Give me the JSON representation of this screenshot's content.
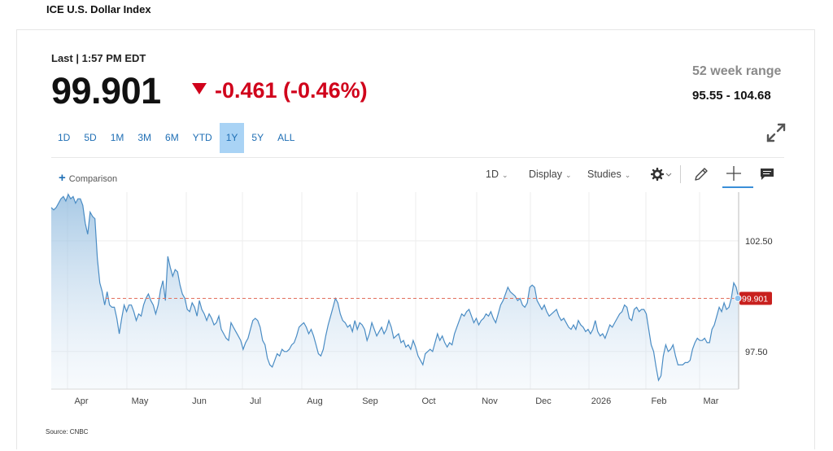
{
  "header": {
    "title": "ICE U.S. Dollar Index",
    "last_label": "Last | 1:57 PM EDT",
    "price": "99.901",
    "change": "-0.461 (-0.46%)",
    "range_label": "52 week range",
    "range_value": "95.55 - 104.68"
  },
  "periods": [
    {
      "label": "1D"
    },
    {
      "label": "5D"
    },
    {
      "label": "1M"
    },
    {
      "label": "3M"
    },
    {
      "label": "6M"
    },
    {
      "label": "YTD"
    },
    {
      "label": "1Y",
      "active": true
    },
    {
      "label": "5Y"
    },
    {
      "label": "ALL"
    }
  ],
  "toolbar": {
    "comparison_label": "Comparison",
    "interval_label": "1D",
    "display_label": "Display",
    "studies_label": "Studies"
  },
  "source": "Source: CNBC",
  "colors": {
    "line": "#4a8cc4",
    "down": "#d0021b",
    "price_tag": "#c8201e",
    "accent": "#a9d3f5"
  },
  "chart_data": {
    "type": "area",
    "title": "",
    "xlabel": "",
    "ylabel": "",
    "x_ticks": [
      "Apr",
      "May",
      "Jun",
      "Jul",
      "Aug",
      "Sep",
      "Oct",
      "Nov",
      "Dec",
      "2026",
      "Feb",
      "Mar"
    ],
    "y_ticks": [
      102.5,
      97.5
    ],
    "ylim": [
      95.8,
      104.7
    ],
    "current_value": 99.901,
    "current_label": "99.901",
    "grid": true,
    "series": [
      {
        "values": [
          104.0,
          103.9,
          104.0,
          104.2,
          104.4,
          104.5,
          104.3,
          104.6,
          104.4,
          104.5,
          104.2,
          104.4,
          104.4,
          104.1,
          103.3,
          102.8,
          103.8,
          103.6,
          103.5,
          101.7,
          100.6,
          100.2,
          99.6,
          100.2,
          99.6,
          99.5,
          99.5,
          99.0,
          98.3,
          99.0,
          99.6,
          99.3,
          99.6,
          99.6,
          99.3,
          98.9,
          99.2,
          99.1,
          99.6,
          99.9,
          100.1,
          99.8,
          99.6,
          99.2,
          99.6,
          100.3,
          100.7,
          99.8,
          101.8,
          101.3,
          100.9,
          101.2,
          101.1,
          100.5,
          100.1,
          99.9,
          99.4,
          99.3,
          99.7,
          99.5,
          99.1,
          99.8,
          99.4,
          99.2,
          98.9,
          99.2,
          99.0,
          98.7,
          98.8,
          99.1,
          98.5,
          98.3,
          98.1,
          98.0,
          98.8,
          98.6,
          98.4,
          98.2,
          98.0,
          97.6,
          97.9,
          98.1,
          98.5,
          98.9,
          99.0,
          98.9,
          98.6,
          98.0,
          97.8,
          97.2,
          96.9,
          96.8,
          97.1,
          97.4,
          97.3,
          97.6,
          97.5,
          97.5,
          97.6,
          97.8,
          97.9,
          98.2,
          98.6,
          98.7,
          98.8,
          98.6,
          98.3,
          98.5,
          98.2,
          97.8,
          97.4,
          97.3,
          97.6,
          98.2,
          98.7,
          99.1,
          99.5,
          99.9,
          99.7,
          99.2,
          98.9,
          98.8,
          98.6,
          98.7,
          98.4,
          98.9,
          98.5,
          98.8,
          98.7,
          98.5,
          98.0,
          98.3,
          98.8,
          98.5,
          98.2,
          98.4,
          98.6,
          98.3,
          98.5,
          98.9,
          98.6,
          98.1,
          98.2,
          98.3,
          97.9,
          98.0,
          97.7,
          97.8,
          97.6,
          98.0,
          97.7,
          97.3,
          97.1,
          96.9,
          97.4,
          97.5,
          97.6,
          97.5,
          97.9,
          98.3,
          98.0,
          98.2,
          97.9,
          97.7,
          97.9,
          97.8,
          98.3,
          98.6,
          98.9,
          99.2,
          99.1,
          99.3,
          99.4,
          99.1,
          98.8,
          99.0,
          98.7,
          98.9,
          99.0,
          99.2,
          99.1,
          99.3,
          99.0,
          98.8,
          99.2,
          99.6,
          99.8,
          100.1,
          100.4,
          100.2,
          100.1,
          100.0,
          99.8,
          99.9,
          99.6,
          99.5,
          99.7,
          100.4,
          100.5,
          100.4,
          99.8,
          99.6,
          99.4,
          99.6,
          99.3,
          99.1,
          99.2,
          99.3,
          99.4,
          99.1,
          98.9,
          99.0,
          98.8,
          98.6,
          98.5,
          98.7,
          98.5,
          98.9,
          98.7,
          98.6,
          98.4,
          98.5,
          98.3,
          98.5,
          98.9,
          98.4,
          98.2,
          98.3,
          98.1,
          98.4,
          98.7,
          98.6,
          98.8,
          99.0,
          99.2,
          99.3,
          99.6,
          99.5,
          99.0,
          98.9,
          99.4,
          99.5,
          99.3,
          99.4,
          99.4,
          99.2,
          98.5,
          97.8,
          97.5,
          96.8,
          96.2,
          96.4,
          97.3,
          97.8,
          97.5,
          97.6,
          97.8,
          97.3,
          96.9,
          96.9,
          96.9,
          97.0,
          97.0,
          97.1,
          97.6,
          97.9,
          98.1,
          98.0,
          98.0,
          98.1,
          97.9,
          97.9,
          98.5,
          98.7,
          99.1,
          99.5,
          99.3,
          99.7,
          99.4,
          99.5,
          99.9,
          100.6,
          100.4,
          99.9
        ]
      }
    ]
  }
}
